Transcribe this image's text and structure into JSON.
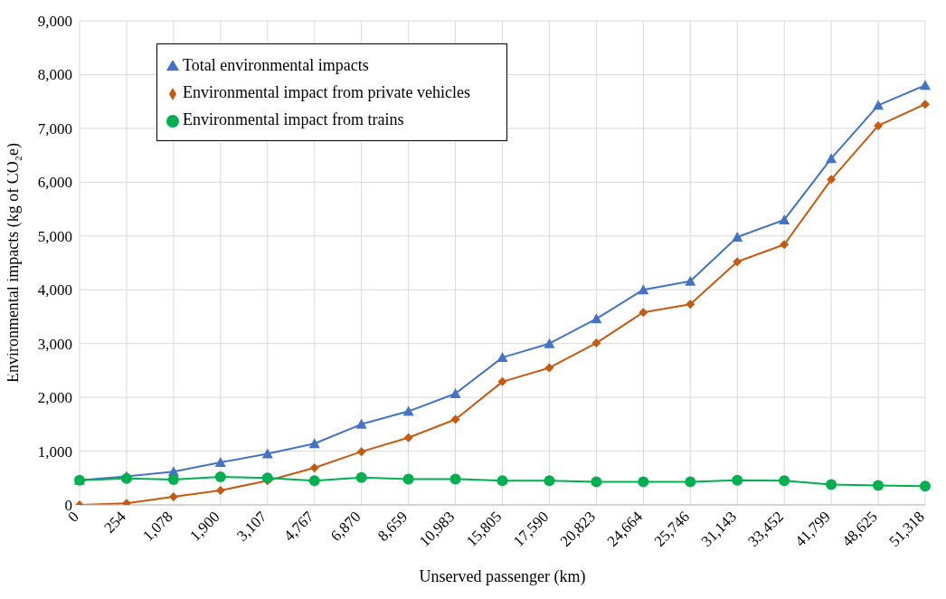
{
  "chart_data": {
    "type": "line",
    "xlabel": "Unserved passenger (km)",
    "ylabel": "Environmental impacts (kg of CO₂e)",
    "categories": [
      "0",
      "254",
      "1,078",
      "1,900",
      "3,107",
      "4,767",
      "6,870",
      "8,659",
      "10,983",
      "15,805",
      "17,590",
      "20,823",
      "24,664",
      "25,746",
      "31,143",
      "33,452",
      "41,799",
      "48,625",
      "51,318"
    ],
    "series": [
      {
        "name": "Total environmental impacts",
        "color": "#4472c4",
        "marker": "triangle",
        "values": [
          460,
          530,
          620,
          790,
          950,
          1140,
          1500,
          1740,
          2070,
          2740,
          3000,
          3460,
          4000,
          4160,
          4980,
          5300,
          6440,
          7430,
          7800
        ]
      },
      {
        "name": "Environmental impact from private vehicles",
        "color": "#c55a11",
        "marker": "diamond",
        "values": [
          0,
          30,
          150,
          270,
          450,
          690,
          990,
          1250,
          1590,
          2290,
          2550,
          3010,
          3580,
          3730,
          4520,
          4840,
          6050,
          7050,
          7450
        ]
      },
      {
        "name": "Environmental impact from trains",
        "color": "#00b050",
        "marker": "circle",
        "values": [
          460,
          490,
          470,
          520,
          500,
          450,
          510,
          480,
          480,
          450,
          450,
          430,
          430,
          430,
          460,
          450,
          380,
          360,
          350
        ]
      }
    ],
    "ylim": [
      0,
      9000
    ],
    "yticks": [
      {
        "value": 0,
        "label": "0"
      },
      {
        "value": 1000,
        "label": "1,000"
      },
      {
        "value": 2000,
        "label": "2,000"
      },
      {
        "value": 3000,
        "label": "3,000"
      },
      {
        "value": 4000,
        "label": "4,000"
      },
      {
        "value": 5000,
        "label": "5,000"
      },
      {
        "value": 6000,
        "label": "6,000"
      },
      {
        "value": 7000,
        "label": "7,000"
      },
      {
        "value": 8000,
        "label": "8,000"
      },
      {
        "value": 9000,
        "label": "9,000"
      }
    ],
    "grid": true,
    "legend": "top left",
    "line_style": "solid"
  }
}
